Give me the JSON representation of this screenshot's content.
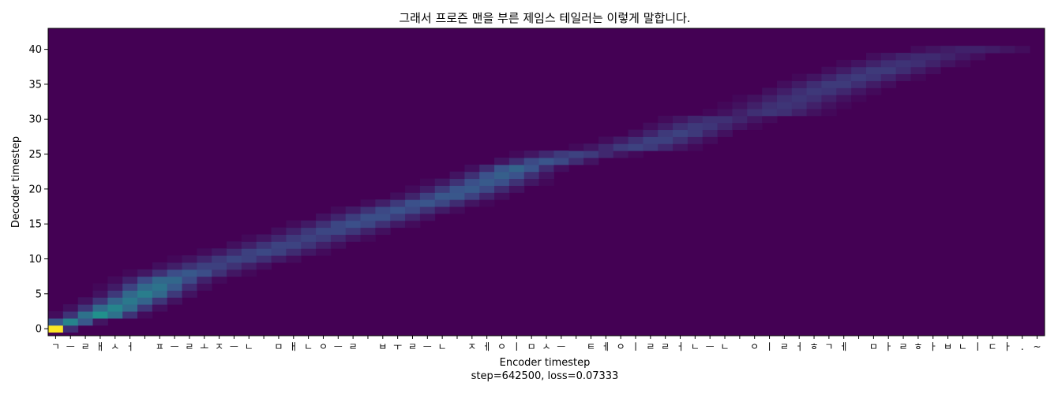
{
  "chart_data": {
    "type": "heatmap",
    "title": "그래서 프로즌 맨을 부른 제임스 테일러는 이렇게 말합니다.",
    "xlabel": "Encoder timestep",
    "ylabel": "Decoder timestep",
    "footer": "step=642500, loss=0.07333",
    "colormap": "viridis",
    "background_color": "#440154",
    "grid": false,
    "xlim": [
      0,
      67
    ],
    "ylim": [
      -1,
      43
    ],
    "y_ticks": [
      0,
      5,
      10,
      15,
      20,
      25,
      30,
      35,
      40
    ],
    "y_tick_labels": [
      "0",
      "5",
      "10",
      "15",
      "20",
      "25",
      "30",
      "35",
      "40"
    ],
    "x_tick_labels": [
      "ㄱ",
      "ㅡ",
      "ㄹ",
      "ㅐ",
      "ㅅ",
      "ㅓ",
      " ",
      "ㅍ",
      "ㅡ",
      "ㄹ",
      "ㅗ",
      "ㅈ",
      "ㅡ",
      "ㄴ",
      " ",
      "ㅁ",
      "ㅐ",
      "ㄴ",
      "ㅇ",
      "ㅡ",
      "ㄹ",
      " ",
      "ㅂ",
      "ㅜ",
      "ㄹ",
      "ㅡ",
      "ㄴ",
      " ",
      "ㅈ",
      "ㅔ",
      "ㅇ",
      "ㅣ",
      "ㅁ",
      "ㅅ",
      "ㅡ",
      " ",
      "ㅌ",
      "ㅔ",
      "ㅇ",
      "ㅣ",
      "ㄹ",
      "ㄹ",
      "ㅓ",
      "ㄴ",
      "ㅡ",
      "ㄴ",
      " ",
      "ㅇ",
      "ㅣ",
      "ㄹ",
      "ㅓ",
      "ㅎ",
      "ㄱ",
      "ㅔ",
      " ",
      "ㅁ",
      "ㅏ",
      "ㄹ",
      "ㅎ",
      "ㅏ",
      "ㅂ",
      "ㄴ",
      "ㅣ",
      "ㄷ",
      "ㅏ",
      ".",
      "~"
    ],
    "alignment_path": [
      {
        "decoder": 0,
        "encoder": 0.5,
        "weight": 1.0,
        "spread": 0.5
      },
      {
        "decoder": 1,
        "encoder": 1.5,
        "weight": 0.45,
        "spread": 1.0
      },
      {
        "decoder": 2,
        "encoder": 3.5,
        "weight": 0.5,
        "spread": 1.3
      },
      {
        "decoder": 4,
        "encoder": 5.5,
        "weight": 0.4,
        "spread": 1.5
      },
      {
        "decoder": 5,
        "encoder": 6.5,
        "weight": 0.42,
        "spread": 1.5
      },
      {
        "decoder": 7,
        "encoder": 8.0,
        "weight": 0.35,
        "spread": 1.6
      },
      {
        "decoder": 9,
        "encoder": 11.0,
        "weight": 0.2,
        "spread": 2.0
      },
      {
        "decoder": 11,
        "encoder": 14.5,
        "weight": 0.22,
        "spread": 2.0
      },
      {
        "decoder": 13,
        "encoder": 17.5,
        "weight": 0.2,
        "spread": 2.0
      },
      {
        "decoder": 15,
        "encoder": 20.5,
        "weight": 0.24,
        "spread": 2.0
      },
      {
        "decoder": 17,
        "encoder": 23.5,
        "weight": 0.25,
        "spread": 2.0
      },
      {
        "decoder": 19,
        "encoder": 27.0,
        "weight": 0.28,
        "spread": 1.8
      },
      {
        "decoder": 21,
        "encoder": 29.5,
        "weight": 0.28,
        "spread": 1.8
      },
      {
        "decoder": 23,
        "encoder": 31.5,
        "weight": 0.32,
        "spread": 1.5
      },
      {
        "decoder": 25,
        "encoder": 35.5,
        "weight": 0.2,
        "spread": 2.0
      },
      {
        "decoder": 26,
        "encoder": 39.5,
        "weight": 0.2,
        "spread": 2.0
      },
      {
        "decoder": 28,
        "encoder": 42.5,
        "weight": 0.2,
        "spread": 1.8
      },
      {
        "decoder": 30,
        "encoder": 45.0,
        "weight": 0.15,
        "spread": 2.0
      },
      {
        "decoder": 31,
        "encoder": 48.5,
        "weight": 0.16,
        "spread": 2.0
      },
      {
        "decoder": 33,
        "encoder": 50.5,
        "weight": 0.16,
        "spread": 2.0
      },
      {
        "decoder": 35,
        "encoder": 53.0,
        "weight": 0.18,
        "spread": 2.0
      },
      {
        "decoder": 37,
        "encoder": 56.0,
        "weight": 0.18,
        "spread": 2.0
      },
      {
        "decoder": 39,
        "encoder": 59.0,
        "weight": 0.13,
        "spread": 2.3
      },
      {
        "decoder": 40,
        "encoder": 62.0,
        "weight": 0.1,
        "spread": 2.5
      }
    ]
  }
}
